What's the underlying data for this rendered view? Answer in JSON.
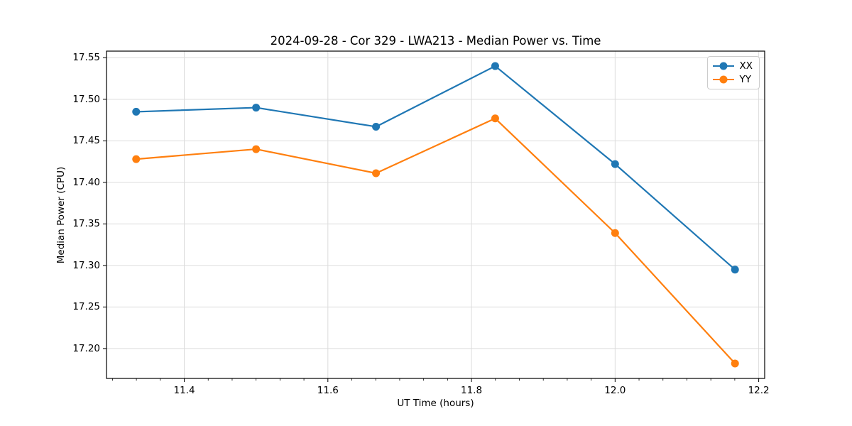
{
  "chart_data": {
    "type": "line",
    "title": "2024-09-28 - Cor 329 - LWA213 - Median Power vs. Time",
    "xlabel": "UT Time (hours)",
    "ylabel": "Median Power (CPU)",
    "x": [
      11.333,
      11.5,
      11.667,
      11.833,
      12.0,
      12.167
    ],
    "series": [
      {
        "name": "XX",
        "color": "#1f77b4",
        "values": [
          17.485,
          17.49,
          17.467,
          17.54,
          17.422,
          17.295
        ]
      },
      {
        "name": "YY",
        "color": "#ff7f0e",
        "values": [
          17.428,
          17.44,
          17.411,
          17.477,
          17.339,
          17.182
        ]
      }
    ],
    "xlim": [
      11.2917,
      12.2083
    ],
    "ylim": [
      17.164,
      17.558
    ],
    "xticks": [
      11.4,
      11.6,
      11.8,
      12.0,
      12.2
    ],
    "yticks": [
      17.2,
      17.25,
      17.3,
      17.35,
      17.4,
      17.45,
      17.5,
      17.55
    ],
    "x_minor_tick_step": 0.033333,
    "grid": true,
    "grid_color": "#dcdcdc",
    "spine_color": "#000000",
    "legend_position": "upper right",
    "marker": "o",
    "background": "#ffffff"
  }
}
